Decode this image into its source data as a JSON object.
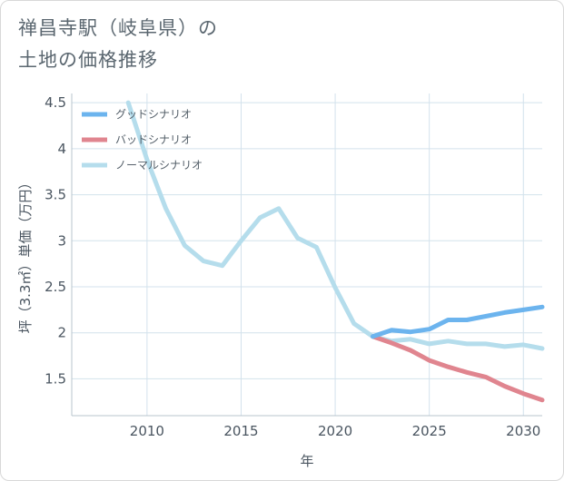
{
  "title": "禅昌寺駅（岐阜県）の\n土地の価格推移",
  "chart_data": {
    "type": "line",
    "xlabel": "年",
    "ylabel": "坪（3.3㎡）単価（万円）",
    "xlim": [
      2006,
      2031
    ],
    "ylim": [
      1.1,
      4.6
    ],
    "xticks": [
      2010,
      2015,
      2020,
      2025,
      2030
    ],
    "yticks": [
      1.5,
      2,
      2.5,
      3,
      3.5,
      4,
      4.5
    ],
    "ytick_labels": [
      "1.5",
      "2",
      "2.5",
      "3",
      "3.5",
      "4",
      "4.5"
    ],
    "grid": true,
    "legend_position": "top-left",
    "series": [
      {
        "name": "グッドシナリオ",
        "color": "#6cb4ee",
        "x": [
          2022,
          2023,
          2024,
          2025,
          2026,
          2027,
          2028,
          2029,
          2030,
          2031
        ],
        "y": [
          1.96,
          2.03,
          2.01,
          2.04,
          2.14,
          2.14,
          2.18,
          2.22,
          2.25,
          2.28
        ]
      },
      {
        "name": "バッドシナリオ",
        "color": "#e0858f",
        "x": [
          2022,
          2023,
          2024,
          2025,
          2026,
          2027,
          2028,
          2029,
          2030,
          2031
        ],
        "y": [
          1.96,
          1.89,
          1.81,
          1.7,
          1.63,
          1.57,
          1.52,
          1.42,
          1.34,
          1.27
        ]
      },
      {
        "name": "ノーマルシナリオ",
        "color": "#b5ddec",
        "x": [
          2009,
          2010,
          2011,
          2012,
          2013,
          2014,
          2015,
          2016,
          2017,
          2018,
          2019,
          2020,
          2021,
          2022,
          2023,
          2024,
          2025,
          2026,
          2027,
          2028,
          2029,
          2030,
          2031
        ],
        "y": [
          4.5,
          3.88,
          3.35,
          2.95,
          2.78,
          2.73,
          3.0,
          3.25,
          3.35,
          3.03,
          2.93,
          2.49,
          2.1,
          1.96,
          1.91,
          1.93,
          1.88,
          1.91,
          1.88,
          1.88,
          1.85,
          1.87,
          1.83
        ]
      }
    ]
  }
}
